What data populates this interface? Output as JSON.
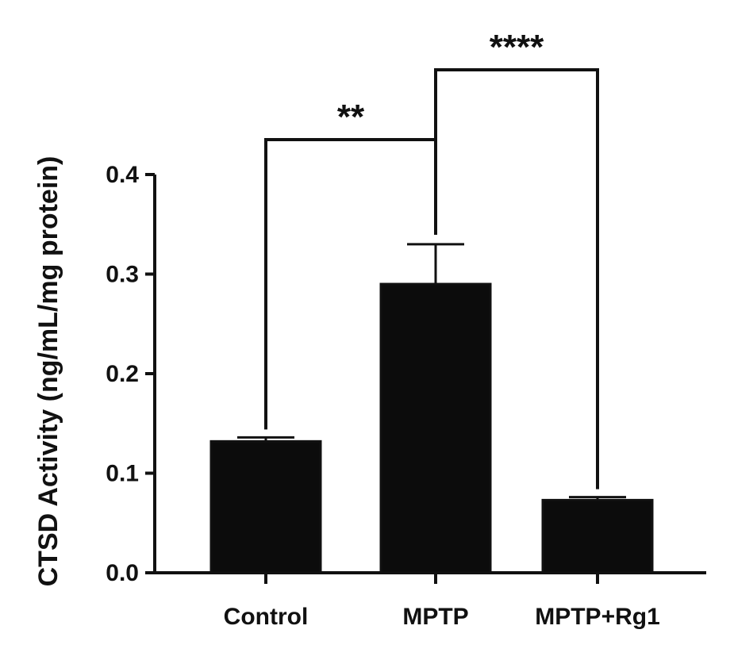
{
  "chart_data": {
    "type": "bar",
    "ylabel": "CTSD Activity (ng/mL/mg protein)",
    "categories": [
      "Control",
      "MPTP",
      "MPTP+Rg1"
    ],
    "values": [
      0.132,
      0.29,
      0.073
    ],
    "errors": [
      0.004,
      0.04,
      0.003
    ],
    "ylim": [
      0.0,
      0.4
    ],
    "yticks": [
      "0.0",
      "0.1",
      "0.2",
      "0.3",
      "0.4"
    ],
    "grid": false,
    "significance": [
      {
        "from": "Control",
        "to": "MPTP",
        "label": "**"
      },
      {
        "from": "MPTP",
        "to": "MPTP+Rg1",
        "label": "****"
      }
    ],
    "bar_color": "#0c0c0c",
    "axis_color": "#111111"
  }
}
